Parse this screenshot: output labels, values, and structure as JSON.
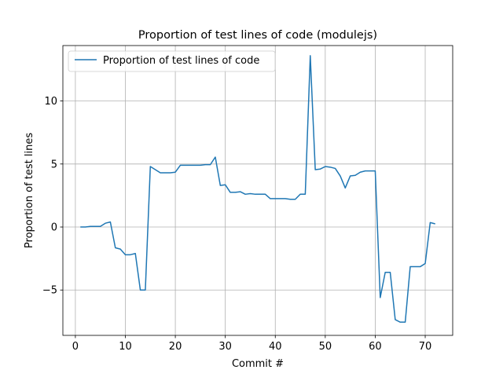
{
  "chart_data": {
    "type": "line",
    "title": "Proportion of test lines of code (modulejs)",
    "xlabel": "Commit #",
    "ylabel": "Proportion of test lines",
    "xlim": [
      -2.5,
      75.5
    ],
    "ylim": [
      -8.6,
      14.4
    ],
    "xticks": [
      0,
      10,
      20,
      30,
      40,
      50,
      60,
      70
    ],
    "yticks": [
      -5,
      0,
      5,
      10
    ],
    "grid": true,
    "legend_position": "top-left",
    "color": "#1f77b4",
    "series": [
      {
        "name": "Proportion of test lines of code",
        "x": [
          1,
          2,
          3,
          4,
          5,
          6,
          7,
          8,
          9,
          10,
          11,
          12,
          13,
          14,
          15,
          16,
          17,
          18,
          19,
          20,
          21,
          22,
          23,
          24,
          25,
          26,
          27,
          28,
          29,
          30,
          31,
          32,
          33,
          34,
          35,
          36,
          37,
          38,
          39,
          40,
          41,
          42,
          43,
          44,
          45,
          46,
          47,
          48,
          49,
          50,
          51,
          52,
          53,
          54,
          55,
          56,
          57,
          58,
          59,
          60,
          61,
          62,
          63,
          64,
          65,
          66,
          67,
          68,
          69,
          70,
          71,
          72
        ],
        "y": [
          0.0,
          0.0,
          0.05,
          0.05,
          0.05,
          0.3,
          0.4,
          -1.65,
          -1.75,
          -2.2,
          -2.2,
          -2.1,
          -5.0,
          -5.0,
          4.8,
          4.55,
          4.3,
          4.3,
          4.3,
          4.35,
          4.9,
          4.9,
          4.9,
          4.9,
          4.9,
          4.95,
          4.95,
          5.55,
          3.3,
          3.35,
          2.75,
          2.75,
          2.8,
          2.6,
          2.65,
          2.6,
          2.6,
          2.6,
          2.25,
          2.25,
          2.25,
          2.25,
          2.2,
          2.2,
          2.6,
          2.6,
          13.6,
          4.55,
          4.6,
          4.8,
          4.75,
          4.65,
          4.05,
          3.1,
          4.05,
          4.1,
          4.35,
          4.45,
          4.45,
          4.45,
          -5.6,
          -3.6,
          -3.6,
          -7.35,
          -7.55,
          -7.55,
          -3.15,
          -3.15,
          -3.15,
          -2.9,
          0.35,
          0.25
        ]
      }
    ]
  }
}
